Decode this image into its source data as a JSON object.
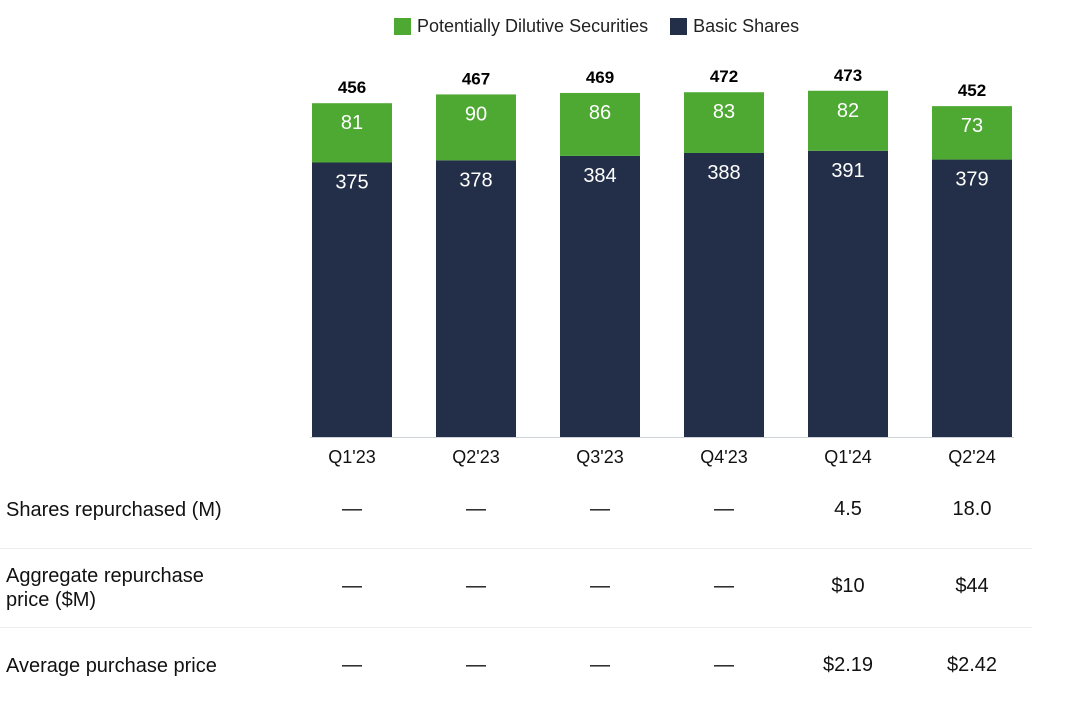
{
  "chart_data": {
    "type": "bar",
    "stacked": true,
    "categories": [
      "Q1'23",
      "Q2'23",
      "Q3'23",
      "Q4'23",
      "Q1'24",
      "Q2'24"
    ],
    "series": [
      {
        "name": "Basic Shares",
        "color": "#232f48",
        "values": [
          375,
          378,
          384,
          388,
          391,
          379
        ]
      },
      {
        "name": "Potentially Dilutive Securities",
        "color": "#4ea933",
        "values": [
          81,
          90,
          86,
          83,
          82,
          73
        ]
      }
    ],
    "totals": [
      456,
      467,
      469,
      472,
      473,
      452
    ],
    "legend": {
      "position": "top",
      "order": [
        "Potentially Dilutive Securities",
        "Basic Shares"
      ]
    }
  },
  "table": {
    "rows": [
      {
        "label": "Shares repurchased (M)",
        "values": [
          "—",
          "—",
          "—",
          "—",
          "4.5",
          "18.0"
        ]
      },
      {
        "label": "Aggregate repurchase price ($M)",
        "values": [
          "—",
          "—",
          "—",
          "—",
          "$10",
          "$44"
        ]
      },
      {
        "label": "Average purchase price",
        "values": [
          "—",
          "—",
          "—",
          "—",
          "$2.19",
          "$2.42"
        ]
      }
    ]
  }
}
